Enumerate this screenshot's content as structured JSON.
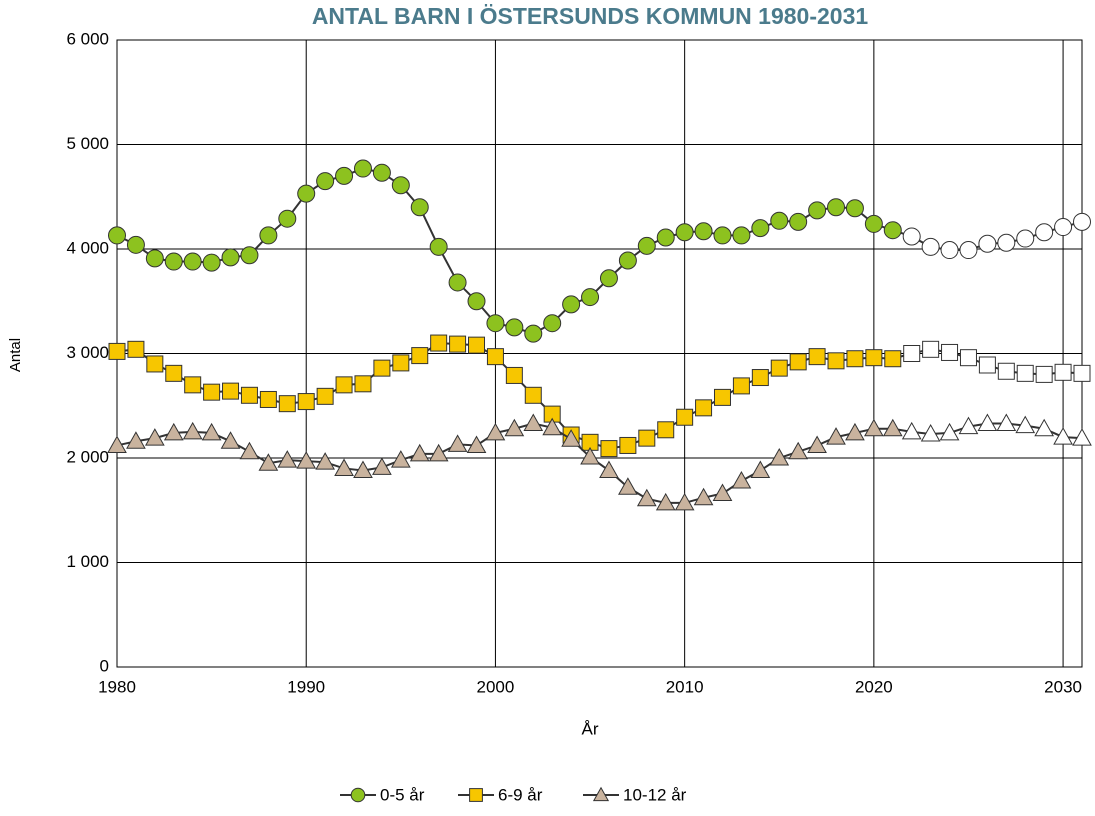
{
  "chart_data": {
    "type": "line",
    "title": "ANTAL BARN I ÖSTERSUNDS KOMMUN 1980-2031",
    "x_label": "År",
    "y_label": "Antal",
    "x": [
      1980,
      1981,
      1982,
      1983,
      1984,
      1985,
      1986,
      1987,
      1988,
      1989,
      1990,
      1991,
      1992,
      1993,
      1994,
      1995,
      1996,
      1997,
      1998,
      1999,
      2000,
      2001,
      2002,
      2003,
      2004,
      2005,
      2006,
      2007,
      2008,
      2009,
      2010,
      2011,
      2012,
      2013,
      2014,
      2015,
      2016,
      2017,
      2018,
      2019,
      2020,
      2021,
      2022,
      2023,
      2024,
      2025,
      2026,
      2027,
      2028,
      2029,
      2030,
      2031
    ],
    "series": [
      {
        "name": "0-5 år",
        "color": "#8dc21f",
        "marker": "circle",
        "values": [
          4130,
          4040,
          3910,
          3880,
          3880,
          3870,
          3920,
          3940,
          4130,
          4290,
          4530,
          4650,
          4700,
          4770,
          4730,
          4610,
          4400,
          4020,
          3680,
          3500,
          3290,
          3250,
          3190,
          3290,
          3470,
          3540,
          3720,
          3890,
          4030,
          4110,
          4160,
          4170,
          4130,
          4130,
          4200,
          4270,
          4260,
          4370,
          4400,
          4390,
          4240,
          4180,
          4120,
          4020,
          3990,
          3990,
          4050,
          4060,
          4100,
          4160,
          4210,
          4260
        ]
      },
      {
        "name": "6-9 år",
        "color": "#f7c600",
        "marker": "square",
        "values": [
          3020,
          3040,
          2900,
          2810,
          2700,
          2630,
          2640,
          2600,
          2560,
          2520,
          2540,
          2590,
          2700,
          2710,
          2860,
          2910,
          2980,
          3100,
          3090,
          3080,
          2970,
          2790,
          2600,
          2420,
          2220,
          2150,
          2090,
          2120,
          2190,
          2270,
          2390,
          2480,
          2580,
          2690,
          2770,
          2860,
          2920,
          2970,
          2930,
          2950,
          2960,
          2950,
          3000,
          3040,
          3010,
          2960,
          2890,
          2830,
          2810,
          2800,
          2820,
          2810
        ]
      },
      {
        "name": "10-12 år",
        "color": "#c9b39e",
        "marker": "triangle",
        "values": [
          2120,
          2160,
          2190,
          2240,
          2250,
          2240,
          2160,
          2060,
          1950,
          1980,
          1970,
          1960,
          1900,
          1880,
          1910,
          1980,
          2040,
          2040,
          2130,
          2120,
          2240,
          2280,
          2330,
          2290,
          2180,
          2010,
          1880,
          1720,
          1610,
          1570,
          1570,
          1620,
          1660,
          1780,
          1880,
          2000,
          2060,
          2120,
          2200,
          2240,
          2280,
          2280,
          2250,
          2230,
          2240,
          2300,
          2330,
          2330,
          2310,
          2280,
          2200,
          2190
        ]
      }
    ],
    "open_markers_from": 2022,
    "xlim": [
      1980,
      2031
    ],
    "xticks": [
      1980,
      1990,
      2000,
      2010,
      2020,
      2030
    ],
    "ylim": [
      0,
      6000
    ],
    "yticks": [
      0,
      {
        "value": 1000,
        "label": "1 000"
      },
      {
        "value": 2000,
        "label": "2 000"
      },
      {
        "value": 3000,
        "label": "3 000"
      },
      {
        "value": 4000,
        "label": "4 000"
      },
      {
        "value": 5000,
        "label": "5 000"
      },
      {
        "value": 6000,
        "label": "6 000"
      }
    ],
    "grid": true,
    "legend": "bottom"
  }
}
